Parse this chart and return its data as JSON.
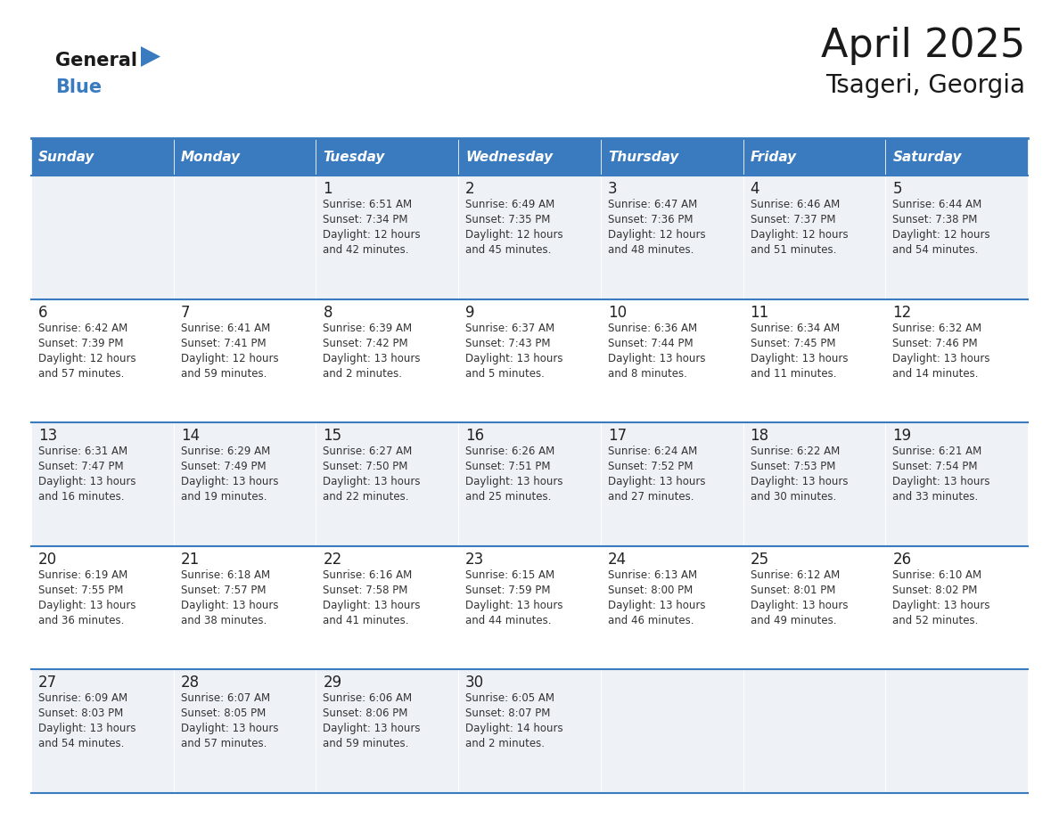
{
  "title": "April 2025",
  "subtitle": "Tsageri, Georgia",
  "header_color": "#3a7bbf",
  "header_text_color": "#ffffff",
  "cell_bg_even": "#eef2f7",
  "cell_bg_odd": "#ffffff",
  "day_number_color": "#222222",
  "text_color": "#333333",
  "line_color": "#3a7bbf",
  "days_of_week": [
    "Sunday",
    "Monday",
    "Tuesday",
    "Wednesday",
    "Thursday",
    "Friday",
    "Saturday"
  ],
  "weeks": [
    [
      {
        "day": "",
        "sunrise": "",
        "sunset": "",
        "daylight": ""
      },
      {
        "day": "",
        "sunrise": "",
        "sunset": "",
        "daylight": ""
      },
      {
        "day": "1",
        "sunrise": "Sunrise: 6:51 AM",
        "sunset": "Sunset: 7:34 PM",
        "daylight": "Daylight: 12 hours\nand 42 minutes."
      },
      {
        "day": "2",
        "sunrise": "Sunrise: 6:49 AM",
        "sunset": "Sunset: 7:35 PM",
        "daylight": "Daylight: 12 hours\nand 45 minutes."
      },
      {
        "day": "3",
        "sunrise": "Sunrise: 6:47 AM",
        "sunset": "Sunset: 7:36 PM",
        "daylight": "Daylight: 12 hours\nand 48 minutes."
      },
      {
        "day": "4",
        "sunrise": "Sunrise: 6:46 AM",
        "sunset": "Sunset: 7:37 PM",
        "daylight": "Daylight: 12 hours\nand 51 minutes."
      },
      {
        "day": "5",
        "sunrise": "Sunrise: 6:44 AM",
        "sunset": "Sunset: 7:38 PM",
        "daylight": "Daylight: 12 hours\nand 54 minutes."
      }
    ],
    [
      {
        "day": "6",
        "sunrise": "Sunrise: 6:42 AM",
        "sunset": "Sunset: 7:39 PM",
        "daylight": "Daylight: 12 hours\nand 57 minutes."
      },
      {
        "day": "7",
        "sunrise": "Sunrise: 6:41 AM",
        "sunset": "Sunset: 7:41 PM",
        "daylight": "Daylight: 12 hours\nand 59 minutes."
      },
      {
        "day": "8",
        "sunrise": "Sunrise: 6:39 AM",
        "sunset": "Sunset: 7:42 PM",
        "daylight": "Daylight: 13 hours\nand 2 minutes."
      },
      {
        "day": "9",
        "sunrise": "Sunrise: 6:37 AM",
        "sunset": "Sunset: 7:43 PM",
        "daylight": "Daylight: 13 hours\nand 5 minutes."
      },
      {
        "day": "10",
        "sunrise": "Sunrise: 6:36 AM",
        "sunset": "Sunset: 7:44 PM",
        "daylight": "Daylight: 13 hours\nand 8 minutes."
      },
      {
        "day": "11",
        "sunrise": "Sunrise: 6:34 AM",
        "sunset": "Sunset: 7:45 PM",
        "daylight": "Daylight: 13 hours\nand 11 minutes."
      },
      {
        "day": "12",
        "sunrise": "Sunrise: 6:32 AM",
        "sunset": "Sunset: 7:46 PM",
        "daylight": "Daylight: 13 hours\nand 14 minutes."
      }
    ],
    [
      {
        "day": "13",
        "sunrise": "Sunrise: 6:31 AM",
        "sunset": "Sunset: 7:47 PM",
        "daylight": "Daylight: 13 hours\nand 16 minutes."
      },
      {
        "day": "14",
        "sunrise": "Sunrise: 6:29 AM",
        "sunset": "Sunset: 7:49 PM",
        "daylight": "Daylight: 13 hours\nand 19 minutes."
      },
      {
        "day": "15",
        "sunrise": "Sunrise: 6:27 AM",
        "sunset": "Sunset: 7:50 PM",
        "daylight": "Daylight: 13 hours\nand 22 minutes."
      },
      {
        "day": "16",
        "sunrise": "Sunrise: 6:26 AM",
        "sunset": "Sunset: 7:51 PM",
        "daylight": "Daylight: 13 hours\nand 25 minutes."
      },
      {
        "day": "17",
        "sunrise": "Sunrise: 6:24 AM",
        "sunset": "Sunset: 7:52 PM",
        "daylight": "Daylight: 13 hours\nand 27 minutes."
      },
      {
        "day": "18",
        "sunrise": "Sunrise: 6:22 AM",
        "sunset": "Sunset: 7:53 PM",
        "daylight": "Daylight: 13 hours\nand 30 minutes."
      },
      {
        "day": "19",
        "sunrise": "Sunrise: 6:21 AM",
        "sunset": "Sunset: 7:54 PM",
        "daylight": "Daylight: 13 hours\nand 33 minutes."
      }
    ],
    [
      {
        "day": "20",
        "sunrise": "Sunrise: 6:19 AM",
        "sunset": "Sunset: 7:55 PM",
        "daylight": "Daylight: 13 hours\nand 36 minutes."
      },
      {
        "day": "21",
        "sunrise": "Sunrise: 6:18 AM",
        "sunset": "Sunset: 7:57 PM",
        "daylight": "Daylight: 13 hours\nand 38 minutes."
      },
      {
        "day": "22",
        "sunrise": "Sunrise: 6:16 AM",
        "sunset": "Sunset: 7:58 PM",
        "daylight": "Daylight: 13 hours\nand 41 minutes."
      },
      {
        "day": "23",
        "sunrise": "Sunrise: 6:15 AM",
        "sunset": "Sunset: 7:59 PM",
        "daylight": "Daylight: 13 hours\nand 44 minutes."
      },
      {
        "day": "24",
        "sunrise": "Sunrise: 6:13 AM",
        "sunset": "Sunset: 8:00 PM",
        "daylight": "Daylight: 13 hours\nand 46 minutes."
      },
      {
        "day": "25",
        "sunrise": "Sunrise: 6:12 AM",
        "sunset": "Sunset: 8:01 PM",
        "daylight": "Daylight: 13 hours\nand 49 minutes."
      },
      {
        "day": "26",
        "sunrise": "Sunrise: 6:10 AM",
        "sunset": "Sunset: 8:02 PM",
        "daylight": "Daylight: 13 hours\nand 52 minutes."
      }
    ],
    [
      {
        "day": "27",
        "sunrise": "Sunrise: 6:09 AM",
        "sunset": "Sunset: 8:03 PM",
        "daylight": "Daylight: 13 hours\nand 54 minutes."
      },
      {
        "day": "28",
        "sunrise": "Sunrise: 6:07 AM",
        "sunset": "Sunset: 8:05 PM",
        "daylight": "Daylight: 13 hours\nand 57 minutes."
      },
      {
        "day": "29",
        "sunrise": "Sunrise: 6:06 AM",
        "sunset": "Sunset: 8:06 PM",
        "daylight": "Daylight: 13 hours\nand 59 minutes."
      },
      {
        "day": "30",
        "sunrise": "Sunrise: 6:05 AM",
        "sunset": "Sunset: 8:07 PM",
        "daylight": "Daylight: 14 hours\nand 2 minutes."
      },
      {
        "day": "",
        "sunrise": "",
        "sunset": "",
        "daylight": ""
      },
      {
        "day": "",
        "sunrise": "",
        "sunset": "",
        "daylight": ""
      },
      {
        "day": "",
        "sunrise": "",
        "sunset": "",
        "daylight": ""
      }
    ]
  ]
}
